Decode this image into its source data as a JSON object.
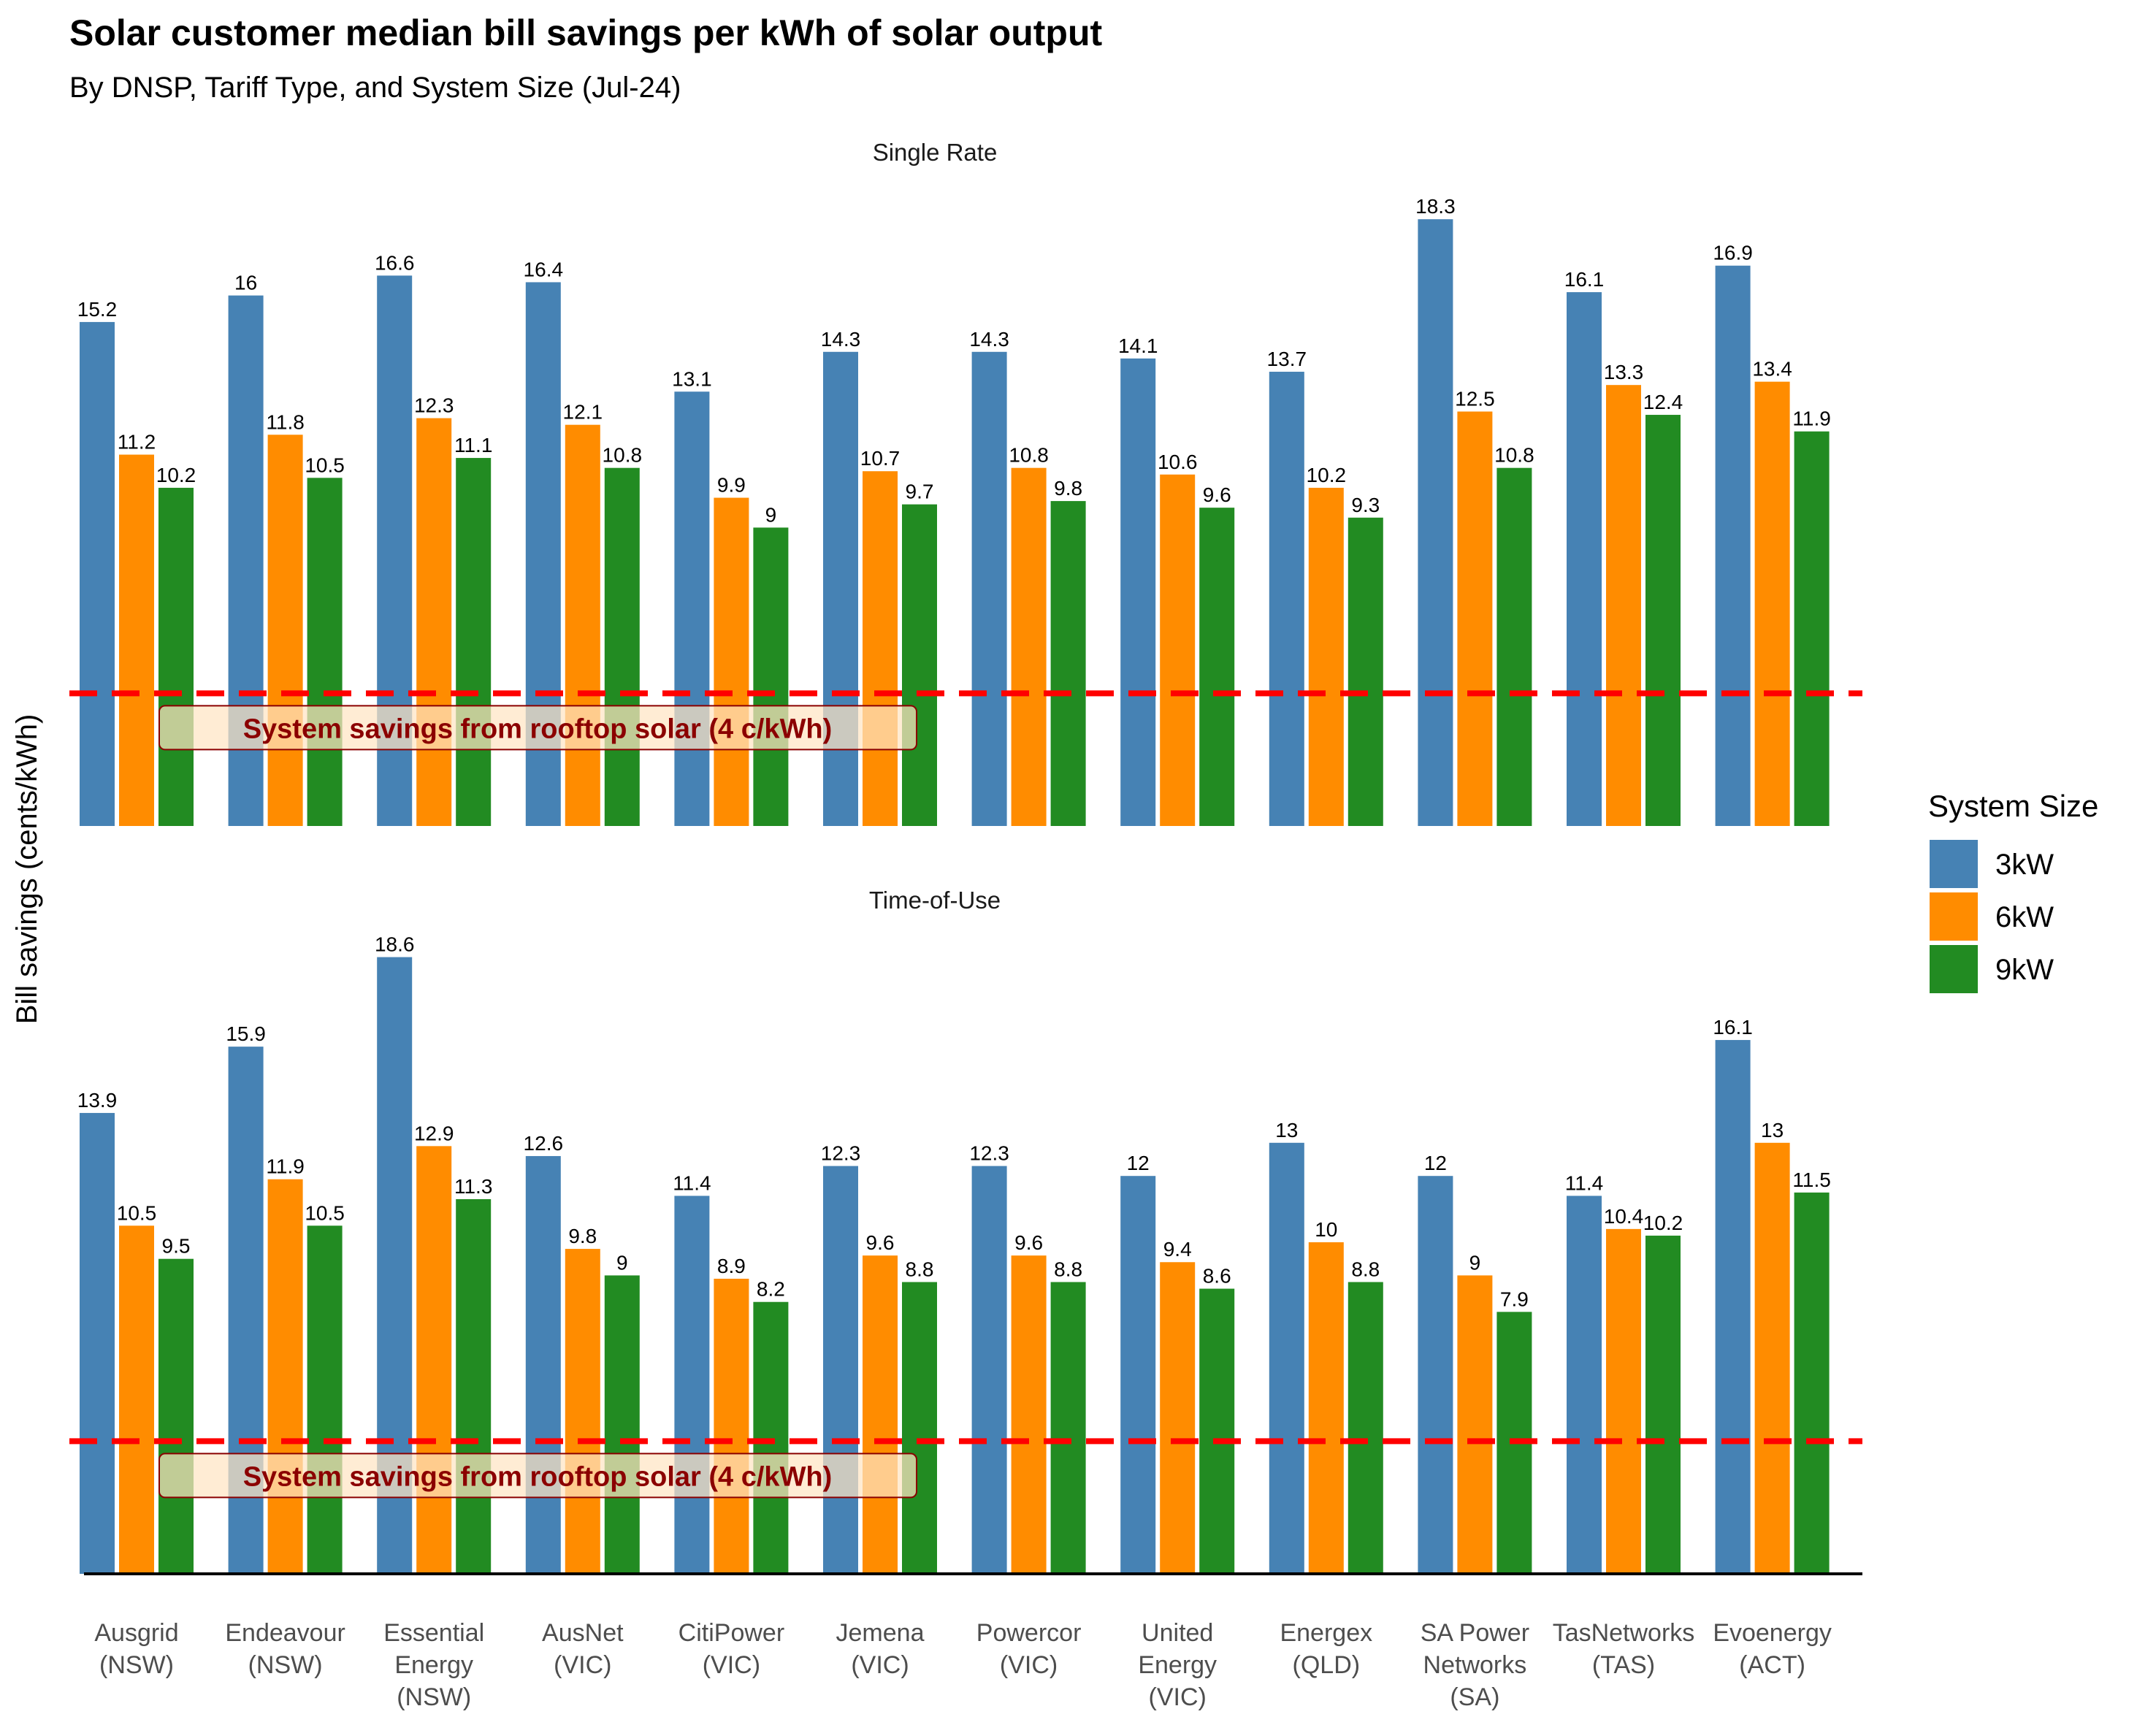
{
  "chart_data": {
    "type": "bar",
    "title": "Solar customer median bill savings per kWh of solar output",
    "subtitle": "By DNSP, Tariff Type, and System Size (Jul-24)",
    "ylabel": "Bill savings (cents/kWh)",
    "xlabel": "",
    "ylim": [
      0,
      20
    ],
    "grid": false,
    "legend": {
      "title": "System Size",
      "placement": "right"
    },
    "categories": [
      [
        "Ausgrid",
        "(NSW)"
      ],
      [
        "Endeavour",
        "(NSW)"
      ],
      [
        "Essential",
        "Energy",
        "(NSW)"
      ],
      [
        "AusNet",
        "(VIC)"
      ],
      [
        "CitiPower",
        "(VIC)"
      ],
      [
        "Jemena",
        "(VIC)"
      ],
      [
        "Powercor",
        "(VIC)"
      ],
      [
        "United",
        "Energy",
        "(VIC)"
      ],
      [
        "Energex",
        "(QLD)"
      ],
      [
        "SA Power",
        "Networks",
        "(SA)"
      ],
      [
        "TasNetworks",
        "(TAS)"
      ],
      [
        "Evoenergy",
        "(ACT)"
      ]
    ],
    "series_names": [
      "3kW",
      "6kW",
      "9kW"
    ],
    "colors": [
      "#4682b4",
      "#ff8c00",
      "#228b22"
    ],
    "reference_line": {
      "value": 4,
      "color": "#ff0000",
      "label": "System savings from rooftop solar (4 c/kWh)"
    },
    "panels": [
      {
        "label": "Single Rate",
        "series": [
          {
            "name": "3kW",
            "values": [
              15.2,
              16,
              16.6,
              16.4,
              13.1,
              14.3,
              14.3,
              14.1,
              13.7,
              18.3,
              16.1,
              16.9
            ]
          },
          {
            "name": "6kW",
            "values": [
              11.2,
              11.8,
              12.3,
              12.1,
              9.9,
              10.7,
              10.8,
              10.6,
              10.2,
              12.5,
              13.3,
              13.4
            ]
          },
          {
            "name": "9kW",
            "values": [
              10.2,
              10.5,
              11.1,
              10.8,
              9,
              9.7,
              9.8,
              9.6,
              9.3,
              10.8,
              12.4,
              11.9
            ]
          }
        ]
      },
      {
        "label": "Time-of-Use",
        "series": [
          {
            "name": "3kW",
            "values": [
              13.9,
              15.9,
              18.6,
              12.6,
              11.4,
              12.3,
              12.3,
              12,
              13,
              12,
              11.4,
              16.1
            ]
          },
          {
            "name": "6kW",
            "values": [
              10.5,
              11.9,
              12.9,
              9.8,
              8.9,
              9.6,
              9.6,
              9.4,
              10,
              9,
              10.4,
              13
            ]
          },
          {
            "name": "9kW",
            "values": [
              9.5,
              10.5,
              11.3,
              9,
              8.2,
              8.8,
              8.8,
              8.6,
              8.8,
              7.9,
              10.2,
              11.5
            ]
          }
        ]
      }
    ]
  }
}
